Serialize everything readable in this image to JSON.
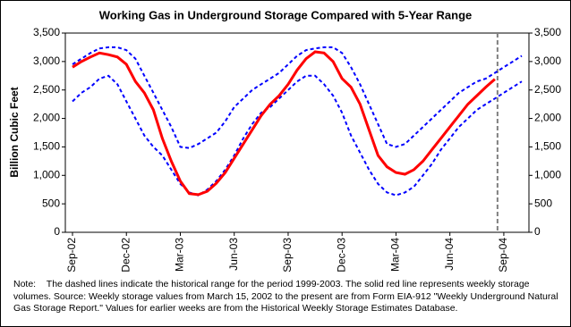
{
  "chart_data": {
    "type": "line",
    "title": "Working Gas in Underground Storage Compared with 5-Year Range",
    "y_label": "Billion Cubic Feet",
    "categories": [
      "Sep-02",
      null,
      null,
      null,
      null,
      null,
      "Dec-02",
      null,
      null,
      null,
      null,
      null,
      "Mar-03",
      null,
      null,
      null,
      null,
      null,
      "Jun-03",
      null,
      null,
      null,
      null,
      null,
      "Sep-03",
      null,
      null,
      null,
      null,
      null,
      "Dec-03",
      null,
      null,
      null,
      null,
      null,
      "Mar-04",
      null,
      null,
      null,
      null,
      null,
      "Jun-04",
      null,
      null,
      null,
      null,
      null,
      "Sep-04",
      null,
      null
    ],
    "series": [
      {
        "color": "#0000ff",
        "style": "dashed",
        "values": [
          2950,
          3050,
          3150,
          3230,
          3250,
          3250,
          3200,
          3050,
          2750,
          2450,
          2150,
          1850,
          1500,
          1480,
          1550,
          1650,
          1750,
          1950,
          2200,
          2350,
          2500,
          2600,
          2700,
          2800,
          2950,
          3100,
          3200,
          3230,
          3250,
          3250,
          3150,
          2900,
          2600,
          2250,
          1900,
          1550,
          1500,
          1550,
          1700,
          1850,
          2000,
          2150,
          2300,
          2450,
          2550,
          2650,
          2700,
          2800,
          2900,
          3000,
          3100
        ]
      },
      {
        "color": "#0000ff",
        "style": "dashed",
        "values": [
          2300,
          2450,
          2550,
          2700,
          2750,
          2600,
          2300,
          2000,
          1700,
          1500,
          1350,
          1100,
          850,
          700,
          650,
          750,
          900,
          1100,
          1350,
          1650,
          1900,
          2100,
          2200,
          2350,
          2500,
          2650,
          2750,
          2750,
          2600,
          2400,
          2100,
          1700,
          1400,
          1100,
          850,
          700,
          650,
          700,
          800,
          1000,
          1200,
          1450,
          1650,
          1850,
          2000,
          2150,
          2250,
          2350,
          2450,
          2550,
          2650
        ]
      },
      {
        "color": "#ff0000",
        "style": "solid",
        "values": [
          2900,
          3000,
          3080,
          3150,
          3120,
          3080,
          2950,
          2650,
          2450,
          2150,
          1650,
          1250,
          900,
          680,
          660,
          720,
          860,
          1050,
          1300,
          1550,
          1800,
          2050,
          2250,
          2400,
          2600,
          2850,
          3050,
          3170,
          3150,
          3000,
          2700,
          2550,
          2250,
          1800,
          1350,
          1150,
          1050,
          1020,
          1100,
          1250,
          1450,
          1650,
          1850,
          2050,
          2250,
          2400,
          2550,
          2690,
          null,
          null,
          null
        ]
      }
    ],
    "ylim": [
      0,
      3500
    ],
    "yticks": [
      0,
      500,
      {
        "value": 1000,
        "label": "1,000"
      },
      {
        "value": 1500,
        "label": "1,500"
      },
      {
        "value": 2000,
        "label": "2,000"
      },
      {
        "value": 2500,
        "label": "2,500"
      },
      {
        "value": 3000,
        "label": "3,000"
      },
      {
        "value": 3500,
        "label": "3,500"
      }
    ],
    "y2lim": [
      0,
      3500
    ],
    "y2ticks": [
      0,
      500,
      {
        "value": 1000,
        "label": "1,000"
      },
      {
        "value": 1500,
        "label": "1,500"
      },
      {
        "value": 2000,
        "label": "2,000"
      },
      {
        "value": 2500,
        "label": "2,500"
      },
      {
        "value": 3000,
        "label": "3,000"
      },
      {
        "value": 3500,
        "label": "3,500"
      }
    ],
    "grid": false,
    "note_label": "Note:",
    "note": "The dashed lines indicate the historical range for the period 1999-2003.  The solid red line represents weekly storage volumes.  Source:  Weekly storage values from March 15, 2002 to the present are from Form EIA-912 \"Weekly Underground Natural Gas Storage Report.\"  Values for earlier weeks are from the Historical Weekly Storage Estimates Database."
  }
}
